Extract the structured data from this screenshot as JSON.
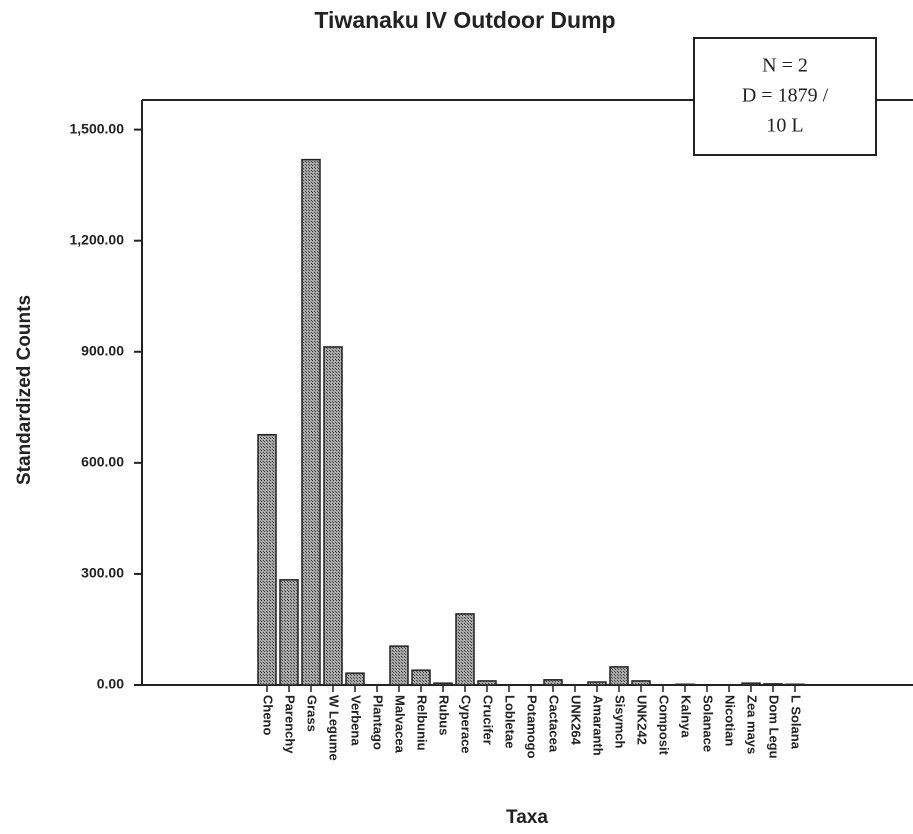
{
  "chart_data": {
    "type": "bar",
    "title": "Tiwanaku IV Outdoor Dump",
    "xlabel": "Taxa",
    "ylabel": "Standardized Counts",
    "annotation": [
      "N = 2",
      "D = 1879 /",
      "10 L"
    ],
    "categories": [
      "Cheno",
      "Parenchy",
      "Grass",
      "W Legume",
      "Verbena",
      "Plantago",
      "Malvacea",
      "Relbuniu",
      "Rubus",
      "Cyperace",
      "Crucifer",
      "Lobletae",
      "Potamogo",
      "Cactacea",
      "UNK264",
      "Amaranth",
      "Sisymch",
      "UNK242",
      "Composit",
      "Kalnya",
      "Solanace",
      "Nicotian",
      "Zea mays",
      "Dom Legu",
      "L Solana"
    ],
    "values": [
      676,
      284,
      1419,
      913,
      32,
      0,
      105,
      40,
      5,
      192,
      11,
      0,
      0,
      14,
      0,
      8,
      49,
      11,
      0,
      2,
      0,
      0,
      5,
      3,
      2
    ],
    "color": "#a8a8a8",
    "ylim": [
      0,
      1580
    ],
    "yticks": [
      {
        "value": 0,
        "label": "0.00"
      },
      {
        "value": 300,
        "label": "300.00"
      },
      {
        "value": 600,
        "label": "600.00"
      },
      {
        "value": 900,
        "label": "900.00"
      },
      {
        "value": 1200,
        "label": "1,200.00"
      },
      {
        "value": 1500,
        "label": "1,500.00"
      }
    ],
    "grid": false
  }
}
